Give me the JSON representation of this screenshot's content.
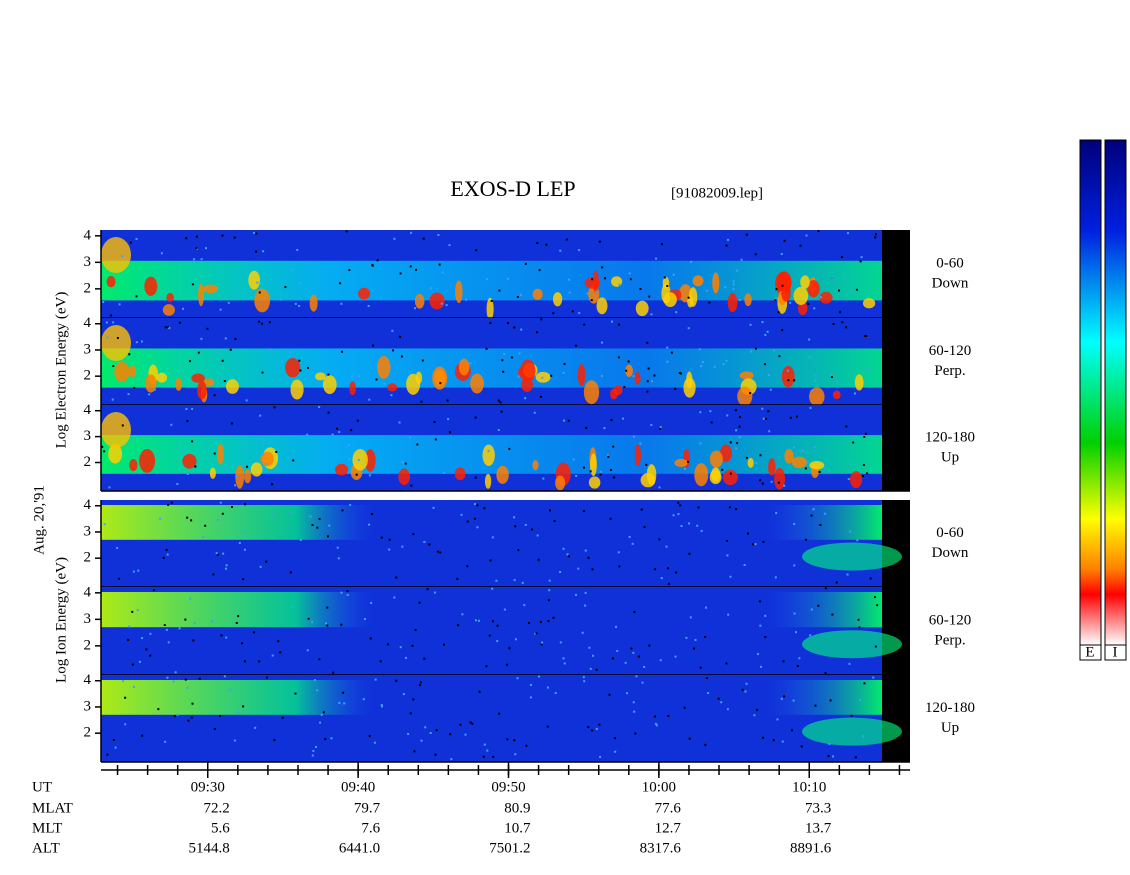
{
  "chart_data": {
    "type": "spectrogram",
    "title": "EXOS-D LEP",
    "subtitle": "[91082009.lep]",
    "date_label": "Aug. 20,'91",
    "electron_axis_label": "Log Electron Energy (eV)",
    "ion_axis_label": "Log Ion Energy (eV)",
    "ylim": [
      0.9,
      4.22
    ],
    "yticks": [
      2,
      3,
      4
    ],
    "xlim": [
      562.9,
      616.7
    ],
    "xticks": [
      {
        "value": 570,
        "label": "09:30"
      },
      {
        "value": 580,
        "label": "09:40"
      },
      {
        "value": 590,
        "label": "09:50"
      },
      {
        "value": 600,
        "label": "10:00"
      },
      {
        "value": 610,
        "label": "10:10"
      }
    ],
    "panels": [
      {
        "angle": "0-60",
        "direction": "Down"
      },
      {
        "angle": "60-120",
        "direction": "Perp."
      },
      {
        "angle": "120-180",
        "direction": "Up"
      },
      {
        "angle": "0-60",
        "direction": "Down"
      },
      {
        "angle": "60-120",
        "direction": "Perp."
      },
      {
        "angle": "120-180",
        "direction": "Up"
      }
    ],
    "ephemeris": {
      "row_labels": [
        "UT",
        "MLAT",
        "MLT",
        "ALT"
      ],
      "rows": [
        [
          "72.2",
          "79.7",
          "80.9",
          "77.6",
          "73.3"
        ],
        [
          "5.6",
          "7.6",
          "10.7",
          "12.7",
          "13.7"
        ],
        [
          "5144.8",
          "6441.0",
          "7501.2",
          "8317.6",
          "8891.6"
        ]
      ]
    },
    "colorbar_labels": [
      "E",
      "I"
    ]
  }
}
